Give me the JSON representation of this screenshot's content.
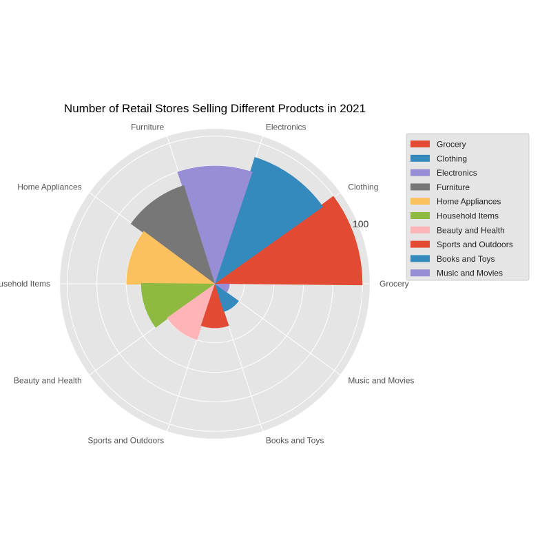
{
  "chart_data": {
    "type": "polar-bar",
    "title": "Number of Retail Stores Selling Different Products in 2021",
    "categories": [
      "Grocery",
      "Clothing",
      "Electronics",
      "Furniture",
      "Home Appliances",
      "Household Items",
      "Beauty and Health",
      "Sports and Outdoors",
      "Books and Toys",
      "Music and Movies"
    ],
    "values": [
      100,
      90,
      80,
      70,
      60,
      50,
      40,
      30,
      20,
      10
    ],
    "colors": [
      "#E24A33",
      "#348ABD",
      "#988ED5",
      "#777777",
      "#FBC15E",
      "#8EBA42",
      "#FFB5B8",
      "#E24A33",
      "#348ABD",
      "#988ED5"
    ],
    "radial_max": 105,
    "radial_gridlines": [
      20,
      40,
      60,
      80,
      100
    ],
    "radial_tick_label": "100",
    "grid": true,
    "legend_position": "outside-right"
  }
}
